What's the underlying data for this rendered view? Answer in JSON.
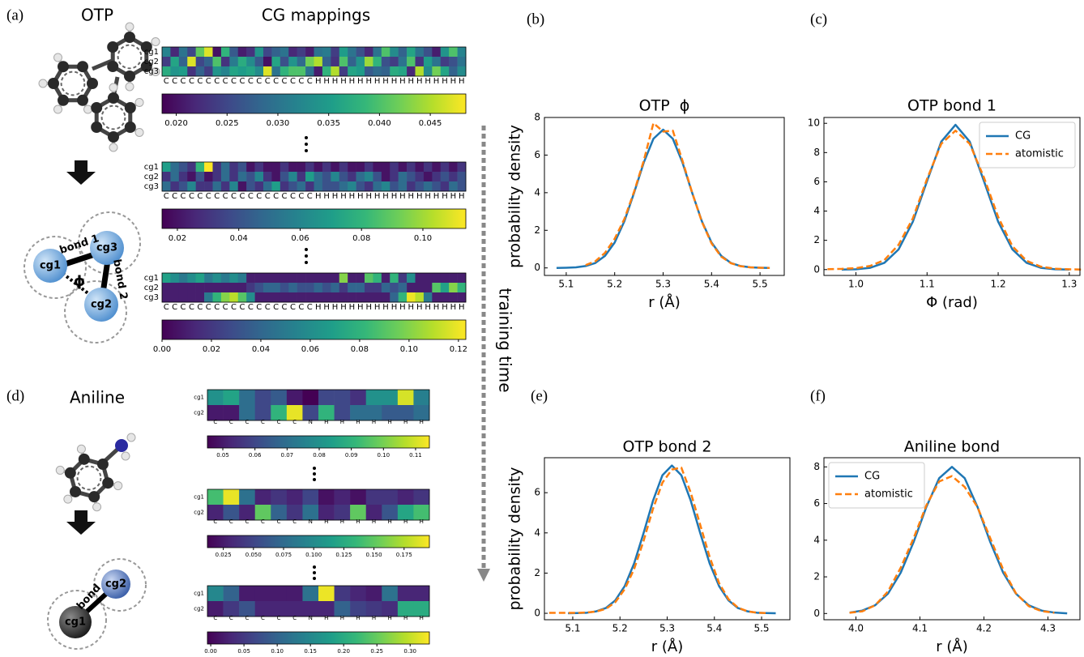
{
  "panel_labels": [
    "(a)",
    "(b)",
    "(c)",
    "(d)",
    "(e)",
    "(f)"
  ],
  "molecules": {
    "otp": "OTP",
    "aniline": "Aniline"
  },
  "heatmaps_title": "CG mappings",
  "training_time": "training time",
  "diagrams": {
    "otp": {
      "beads": [
        "cg1",
        "cg2",
        "cg3"
      ],
      "bonds": [
        "bond 1",
        "bond 2"
      ],
      "angle": "ϕ"
    },
    "aniline": {
      "beads": [
        "cg1",
        "cg2"
      ],
      "bonds": [
        "bond"
      ]
    }
  },
  "chart_data": [
    {
      "type": "line",
      "title": "OTP  ϕ",
      "xlabel": "r (Å)",
      "ylabel": "probability density",
      "x": [
        5.08,
        5.1,
        5.12,
        5.14,
        5.16,
        5.18,
        5.2,
        5.22,
        5.24,
        5.26,
        5.28,
        5.3,
        5.32,
        5.34,
        5.36,
        5.38,
        5.4,
        5.42,
        5.44,
        5.46,
        5.48,
        5.5,
        5.52
      ],
      "series": [
        {
          "color": "#1f77b4",
          "linestyle": "solid",
          "values": [
            0,
            0.01,
            0.03,
            0.1,
            0.26,
            0.64,
            1.35,
            2.48,
            3.99,
            5.6,
            6.87,
            7.35,
            6.87,
            5.6,
            3.99,
            2.48,
            1.35,
            0.64,
            0.26,
            0.1,
            0.03,
            0.01,
            0
          ]
        },
        {
          "color": "#ff7f0e",
          "linestyle": "dashed",
          "values": [
            null,
            null,
            null,
            0.15,
            0.35,
            0.8,
            1.55,
            2.6,
            4.05,
            5.7,
            7.7,
            7.25,
            7.3,
            5.7,
            4.0,
            2.45,
            1.3,
            0.6,
            0.25,
            0.09,
            0.03,
            0.01,
            0
          ]
        }
      ],
      "xlim": [
        5.055,
        5.55
      ],
      "ylim": [
        -0.4,
        8.0
      ],
      "xticks": [
        5.1,
        5.2,
        5.3,
        5.4,
        5.5
      ],
      "yticks": [
        0,
        2,
        4,
        6,
        8
      ]
    },
    {
      "type": "line",
      "title": "OTP bond 1",
      "xlabel": "Φ (rad)",
      "x": [
        0.96,
        0.98,
        1.0,
        1.02,
        1.04,
        1.06,
        1.08,
        1.1,
        1.12,
        1.14,
        1.16,
        1.18,
        1.2,
        1.22,
        1.24,
        1.26,
        1.28,
        1.3,
        1.32
      ],
      "series": [
        {
          "name": "CG",
          "color": "#1f77b4",
          "linestyle": "solid",
          "values": [
            null,
            0,
            0.02,
            0.12,
            0.46,
            1.38,
            3.27,
            6.05,
            8.75,
            9.9,
            8.75,
            6.05,
            3.27,
            1.38,
            0.46,
            0.12,
            0.02,
            0,
            null
          ]
        },
        {
          "name": "atomistic",
          "color": "#ff7f0e",
          "linestyle": "dashed",
          "values": [
            0.03,
            0.05,
            0.1,
            0.25,
            0.65,
            1.7,
            3.5,
            6.2,
            8.6,
            9.5,
            8.6,
            6.3,
            3.6,
            1.6,
            0.6,
            0.2,
            0.06,
            0.02,
            0
          ]
        }
      ],
      "legend": "upper right",
      "xlim": [
        0.955,
        1.315
      ],
      "ylim": [
        -0.4,
        10.4
      ],
      "xticks": [
        {
          "value": 1.0,
          "label": "1.0"
        },
        1.1,
        1.2,
        1.3
      ],
      "yticks": [
        0,
        2,
        4,
        6,
        8,
        10
      ]
    },
    {
      "type": "line",
      "title": "OTP bond 2",
      "xlabel": "r (Å)",
      "ylabel": "probability density",
      "x": [
        5.05,
        5.07,
        5.09,
        5.11,
        5.13,
        5.15,
        5.17,
        5.19,
        5.21,
        5.23,
        5.25,
        5.27,
        5.29,
        5.31,
        5.33,
        5.35,
        5.37,
        5.39,
        5.41,
        5.43,
        5.45,
        5.47,
        5.49,
        5.51,
        5.53
      ],
      "series": [
        {
          "color": "#1f77b4",
          "linestyle": "solid",
          "values": [
            null,
            null,
            0,
            0.01,
            0.03,
            0.1,
            0.26,
            0.64,
            1.35,
            2.48,
            3.99,
            5.6,
            6.87,
            7.35,
            6.87,
            5.6,
            3.99,
            2.48,
            1.35,
            0.64,
            0.26,
            0.1,
            0.03,
            0.01,
            0
          ]
        },
        {
          "color": "#ff7f0e",
          "linestyle": "dashed",
          "values": [
            0.02,
            0.02,
            0.02,
            0.02,
            0.04,
            0.09,
            0.22,
            0.55,
            1.2,
            2.2,
            3.6,
            5.2,
            6.5,
            7.15,
            7.25,
            6.0,
            4.4,
            2.8,
            1.5,
            0.7,
            0.28,
            0.1,
            0.03,
            0.01,
            null
          ]
        }
      ],
      "xlim": [
        5.04,
        5.56
      ],
      "ylim": [
        -0.32,
        7.74
      ],
      "xticks": [
        5.1,
        5.2,
        5.3,
        5.4,
        5.5
      ],
      "yticks": [
        0,
        2,
        4,
        6
      ]
    },
    {
      "type": "line",
      "title": "Aniline bond",
      "xlabel": "r (Å)",
      "x": [
        3.99,
        4.01,
        4.03,
        4.05,
        4.07,
        4.09,
        4.11,
        4.13,
        4.15,
        4.17,
        4.19,
        4.21,
        4.23,
        4.25,
        4.27,
        4.29,
        4.31,
        4.33
      ],
      "series": [
        {
          "name": "CG",
          "color": "#1f77b4",
          "linestyle": "solid",
          "values": [
            0.05,
            0.16,
            0.45,
            1.08,
            2.23,
            3.89,
            5.81,
            7.38,
            8,
            7.38,
            5.81,
            3.89,
            2.23,
            1.08,
            0.45,
            0.16,
            0.05,
            0.01
          ]
        },
        {
          "name": "atomistic",
          "color": "#ff7f0e",
          "linestyle": "dashed",
          "values": [
            0.04,
            0.12,
            0.45,
            1.2,
            2.5,
            4.1,
            5.9,
            7.2,
            7.5,
            6.9,
            5.8,
            4.1,
            2.4,
            1.1,
            0.4,
            0.13,
            0.04,
            null
          ]
        }
      ],
      "legend": "upper left",
      "xlim": [
        3.95,
        4.35
      ],
      "ylim": [
        -0.34,
        8.5
      ],
      "xticks": [
        {
          "value": 4.0,
          "label": "4.0"
        },
        4.1,
        4.2,
        4.3
      ],
      "yticks": [
        0,
        2,
        4,
        6,
        8
      ]
    },
    {
      "type": "heatmap",
      "colormap": "viridis",
      "rows": [
        "cg1",
        "cg2",
        "cg3"
      ],
      "columns": [
        "C",
        "C",
        "C",
        "C",
        "C",
        "C",
        "C",
        "C",
        "C",
        "C",
        "C",
        "C",
        "C",
        "C",
        "C",
        "C",
        "C",
        "C",
        "H",
        "H",
        "H",
        "H",
        "H",
        "H",
        "H",
        "H",
        "H",
        "H",
        "H",
        "H",
        "H",
        "H",
        "H",
        "H",
        "H",
        "H"
      ],
      "values": [
        [
          0.032,
          0.022,
          0.03,
          0.025,
          0.041,
          0.047,
          0.02,
          0.038,
          0.027,
          0.021,
          0.023,
          0.034,
          0.025,
          0.028,
          0.03,
          0.022,
          0.024,
          0.021,
          0.03,
          0.031,
          0.024,
          0.035,
          0.03,
          0.026,
          0.022,
          0.03,
          0.04,
          0.033,
          0.028,
          0.036,
          0.03,
          0.026,
          0.021,
          0.034,
          0.04,
          0.032
        ],
        [
          0.024,
          0.036,
          0.028,
          0.047,
          0.025,
          0.028,
          0.04,
          0.023,
          0.031,
          0.037,
          0.033,
          0.027,
          0.02,
          0.036,
          0.026,
          0.034,
          0.029,
          0.042,
          0.045,
          0.028,
          0.023,
          0.04,
          0.028,
          0.034,
          0.044,
          0.038,
          0.026,
          0.024,
          0.03,
          0.04,
          0.023,
          0.035,
          0.03,
          0.024,
          0.026,
          0.03
        ],
        [
          0.037,
          0.034,
          0.035,
          0.023,
          0.028,
          0.024,
          0.034,
          0.032,
          0.036,
          0.035,
          0.036,
          0.033,
          0.047,
          0.03,
          0.038,
          0.04,
          0.04,
          0.03,
          0.021,
          0.038,
          0.045,
          0.024,
          0.036,
          0.035,
          0.027,
          0.029,
          0.028,
          0.037,
          0.036,
          0.022,
          0.045,
          0.033,
          0.042,
          0.036,
          0.028,
          0.033
        ]
      ],
      "zlim": [
        0.0186,
        0.0485
      ],
      "zticks": [
        {
          "value": 0.02,
          "label": "0.020"
        },
        0.025,
        {
          "value": 0.03,
          "label": "0.030"
        },
        0.035,
        {
          "value": 0.04,
          "label": "0.040"
        },
        0.045
      ]
    },
    {
      "type": "heatmap",
      "colormap": "viridis",
      "rows": [
        "cg1",
        "cg2",
        "cg3"
      ],
      "columns": [
        "C",
        "C",
        "C",
        "C",
        "C",
        "C",
        "C",
        "C",
        "C",
        "C",
        "C",
        "C",
        "C",
        "C",
        "C",
        "C",
        "C",
        "C",
        "H",
        "H",
        "H",
        "H",
        "H",
        "H",
        "H",
        "H",
        "H",
        "H",
        "H",
        "H",
        "H",
        "H",
        "H",
        "H",
        "H",
        "H"
      ],
      "values": [
        [
          0.07,
          0.05,
          0.04,
          0.03,
          0.08,
          0.114,
          0.03,
          0.05,
          0.03,
          0.04,
          0.02,
          0.03,
          0.02,
          0.02,
          0.03,
          0.02,
          0.02,
          0.03,
          0.02,
          0.03,
          0.02,
          0.03,
          0.02,
          0.02,
          0.03,
          0.02,
          0.02,
          0.03,
          0.02,
          0.03,
          0.02,
          0.03,
          0.02,
          0.03,
          0.02,
          0.03
        ],
        [
          0.03,
          0.05,
          0.03,
          0.02,
          0.04,
          0.02,
          0.03,
          0.05,
          0.03,
          0.05,
          0.04,
          0.06,
          0.03,
          0.02,
          0.04,
          0.06,
          0.03,
          0.07,
          0.05,
          0.04,
          0.06,
          0.04,
          0.03,
          0.05,
          0.06,
          0.04,
          0.02,
          0.03,
          0.05,
          0.04,
          0.03,
          0.02,
          0.03,
          0.04,
          0.03,
          0.04
        ],
        [
          0.05,
          0.03,
          0.04,
          0.06,
          0.03,
          0.03,
          0.05,
          0.03,
          0.06,
          0.02,
          0.04,
          0.03,
          0.05,
          0.07,
          0.03,
          0.04,
          0.05,
          0.03,
          0.05,
          0.04,
          0.04,
          0.05,
          0.06,
          0.04,
          0.03,
          0.05,
          0.06,
          0.04,
          0.05,
          0.03,
          0.04,
          0.05,
          0.04,
          0.03,
          0.05,
          0.04
        ]
      ],
      "zlim": [
        0.015,
        0.114
      ],
      "zticks": [
        0.02,
        0.04,
        0.06,
        0.08,
        {
          "value": 0.1,
          "label": "0.10"
        }
      ]
    },
    {
      "type": "heatmap",
      "colormap": "viridis",
      "rows": [
        "cg1",
        "cg2",
        "cg3"
      ],
      "columns": [
        "C",
        "C",
        "C",
        "C",
        "C",
        "C",
        "C",
        "C",
        "C",
        "C",
        "C",
        "C",
        "C",
        "C",
        "C",
        "C",
        "C",
        "C",
        "H",
        "H",
        "H",
        "H",
        "H",
        "H",
        "H",
        "H",
        "H",
        "H",
        "H",
        "H",
        "H",
        "H",
        "H",
        "H",
        "H",
        "H"
      ],
      "values": [
        [
          0.07,
          0.06,
          0.05,
          0.06,
          0.07,
          0.05,
          0.06,
          0.05,
          0.06,
          0.05,
          0.01,
          0.01,
          0.01,
          0.01,
          0.01,
          0.01,
          0.01,
          0.01,
          0.01,
          0.01,
          0.01,
          0.1,
          0.01,
          0.01,
          0.09,
          0.08,
          0.01,
          0.08,
          0.02,
          0.06,
          0.01,
          0.01,
          0.01,
          0.01,
          0.01,
          0.01
        ],
        [
          0.01,
          0.01,
          0.01,
          0.01,
          0.01,
          0.01,
          0.01,
          0.01,
          0.01,
          0.01,
          0.02,
          0.03,
          0.04,
          0.04,
          0.03,
          0.04,
          0.03,
          0.03,
          0.04,
          0.03,
          0.04,
          0.02,
          0.04,
          0.04,
          0.02,
          0.02,
          0.04,
          0.03,
          0.04,
          0.01,
          0.01,
          0.01,
          0.09,
          0.07,
          0.1,
          0.08
        ],
        [
          0.01,
          0.01,
          0.01,
          0.01,
          0.01,
          0.05,
          0.08,
          0.1,
          0.11,
          0.09,
          0.06,
          0.01,
          0.01,
          0.01,
          0.01,
          0.01,
          0.01,
          0.01,
          0.01,
          0.01,
          0.01,
          0.01,
          0.01,
          0.01,
          0.01,
          0.01,
          0.01,
          0.04,
          0.08,
          0.12,
          0.11,
          0.05,
          0.01,
          0.01,
          0.01,
          0.01
        ]
      ],
      "zlim": [
        0,
        0.123
      ],
      "zticks": [
        {
          "value": 0,
          "label": "0.00"
        },
        0.02,
        0.04,
        0.06,
        0.08,
        {
          "value": 0.1,
          "label": "0.10"
        },
        0.12
      ]
    },
    {
      "type": "heatmap",
      "colormap": "viridis",
      "rows": [
        "cg1",
        "cg2"
      ],
      "columns": [
        "C",
        "C",
        "C",
        "C",
        "C",
        "C",
        "N",
        "H",
        "H",
        "H",
        "H",
        "H",
        "H",
        "H"
      ],
      "values": [
        [
          0.08,
          0.085,
          0.07,
          0.06,
          0.065,
          0.05,
          0.045,
          0.06,
          0.06,
          0.055,
          0.08,
          0.08,
          0.11,
          0.075
        ],
        [
          0.05,
          0.05,
          0.07,
          0.06,
          0.09,
          0.112,
          0.06,
          0.09,
          0.06,
          0.07,
          0.07,
          0.065,
          0.065,
          0.07
        ]
      ],
      "zlim": [
        0.0452,
        0.1143
      ],
      "zticks": [
        0.05,
        0.06,
        0.07,
        0.08,
        0.09,
        {
          "value": 0.1,
          "label": "0.10"
        },
        0.11
      ]
    },
    {
      "type": "heatmap",
      "colormap": "viridis",
      "rows": [
        "cg1",
        "cg2"
      ],
      "columns": [
        "C",
        "C",
        "C",
        "C",
        "C",
        "C",
        "N",
        "H",
        "H",
        "H",
        "H",
        "H",
        "H",
        "H"
      ],
      "values": [
        [
          0.14,
          0.19,
          0.08,
          0.03,
          0.04,
          0.03,
          0.05,
          0.02,
          0.03,
          0.02,
          0.04,
          0.04,
          0.03,
          0.04
        ],
        [
          0.03,
          0.06,
          0.03,
          0.15,
          0.07,
          0.04,
          0.08,
          0.03,
          0.04,
          0.15,
          0.03,
          0.06,
          0.12,
          0.14
        ]
      ],
      "zlim": [
        0.0118,
        0.196
      ],
      "zticks": [
        0.025,
        {
          "value": 0.05,
          "label": "0.050"
        },
        0.075,
        {
          "value": 0.1,
          "label": "0.100"
        },
        0.125,
        {
          "value": 0.15,
          "label": "0.150"
        },
        0.175
      ]
    },
    {
      "type": "heatmap",
      "colormap": "viridis",
      "rows": [
        "cg1",
        "cg2"
      ],
      "columns": [
        "C",
        "C",
        "C",
        "C",
        "C",
        "C",
        "N",
        "H",
        "H",
        "H",
        "H",
        "H",
        "H",
        "H"
      ],
      "values": [
        [
          0.15,
          0.1,
          0.02,
          0.02,
          0.02,
          0.02,
          0.12,
          0.32,
          0.05,
          0.03,
          0.02,
          0.12,
          0.03,
          0.03
        ],
        [
          0.02,
          0.05,
          0.08,
          0.03,
          0.03,
          0.03,
          0.03,
          0.03,
          0.1,
          0.06,
          0.05,
          0.04,
          0.2,
          0.2
        ]
      ],
      "zlim": [
        -0.005,
        0.329
      ],
      "zticks": [
        {
          "value": 0,
          "label": "0.00"
        },
        0.05,
        {
          "value": 0.1,
          "label": "0.10"
        },
        0.15,
        {
          "value": 0.2,
          "label": "0.20"
        },
        0.25,
        {
          "value": 0.3,
          "label": "0.30"
        }
      ]
    }
  ]
}
